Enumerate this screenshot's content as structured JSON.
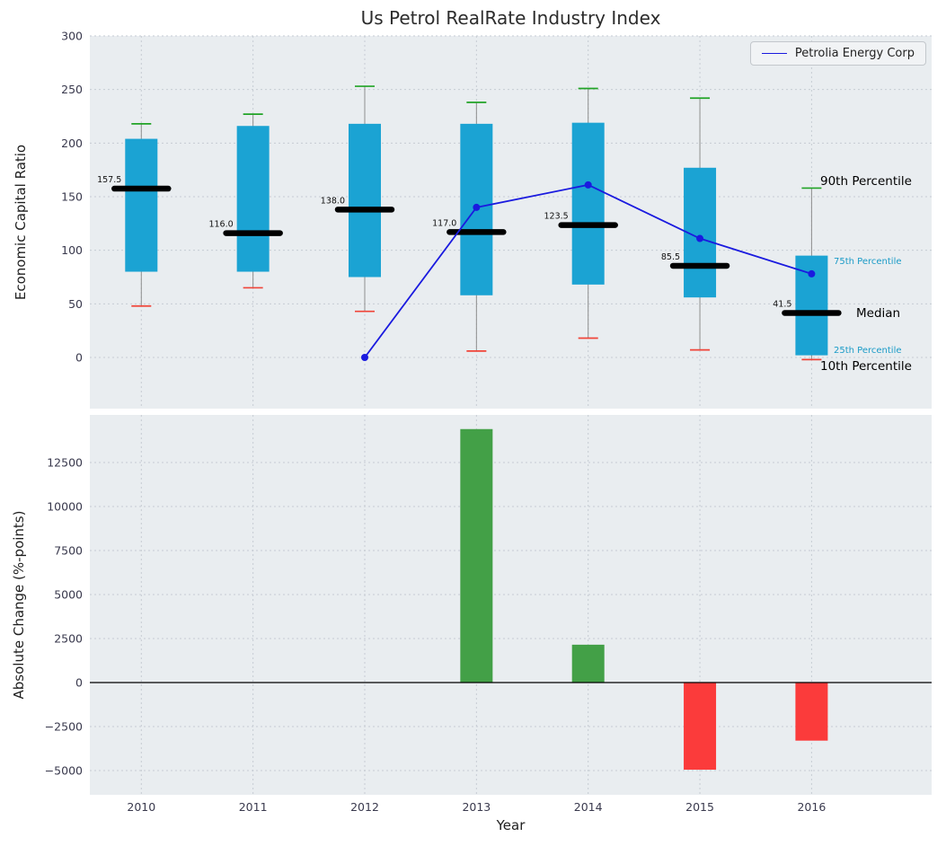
{
  "title": "Us Petrol RealRate Industry Index",
  "legend": {
    "label": "Petrolia Energy Corp"
  },
  "annotations": {
    "p90": "90th Percentile",
    "p75": "75th Percentile",
    "median": "Median",
    "p25": "25th Percentile",
    "p10": "10th Percentile"
  },
  "colors": {
    "box": "#1ba3d3",
    "median": "#000000",
    "cap_high": "#21a326",
    "cap_low": "#f04438",
    "whisker": "#8f8f8f",
    "company_line": "#1a1adf",
    "bar_positive": "#43a047",
    "bar_negative": "#fb3b3b",
    "plot_bg": "#e9edf0",
    "grid": "#c6ccd3",
    "tick_text": "#39394d",
    "annotation_small": "#1a9bc7"
  },
  "chart_data": [
    {
      "type": "boxplot",
      "title": "Us Petrol RealRate Industry Index",
      "ylabel": "Economic Capital Ratio",
      "ylim": [
        -48,
        300
      ],
      "yticks": [
        0,
        50,
        100,
        150,
        200,
        250,
        300
      ],
      "grid": "dotted",
      "legend_position": "upper right",
      "categories": [
        2010,
        2011,
        2012,
        2013,
        2014,
        2015,
        2016
      ],
      "boxes": [
        {
          "year": 2010,
          "p10": 48,
          "p25": 80,
          "median": 157.5,
          "p75": 204,
          "p90": 218,
          "label": "157.5"
        },
        {
          "year": 2011,
          "p10": 65,
          "p25": 80,
          "median": 116.0,
          "p75": 216,
          "p90": 227,
          "label": "116.0"
        },
        {
          "year": 2012,
          "p10": 43,
          "p25": 75,
          "median": 138.0,
          "p75": 218,
          "p90": 253,
          "label": "138.0"
        },
        {
          "year": 2013,
          "p10": 6,
          "p25": 58,
          "median": 117.0,
          "p75": 218,
          "p90": 238,
          "label": "117.0"
        },
        {
          "year": 2014,
          "p10": 18,
          "p25": 68,
          "median": 123.5,
          "p75": 219,
          "p90": 251,
          "label": "123.5"
        },
        {
          "year": 2015,
          "p10": 7,
          "p25": 56,
          "median": 85.5,
          "p75": 177,
          "p90": 242,
          "label": "85.5"
        },
        {
          "year": 2016,
          "p10": -2,
          "p25": 2,
          "median": 41.5,
          "p75": 95,
          "p90": 158,
          "label": "41.5"
        }
      ],
      "series": [
        {
          "name": "Petrolia Energy Corp",
          "x": [
            2012,
            2013,
            2014,
            2015,
            2016
          ],
          "y": [
            0,
            140,
            161,
            111,
            78
          ]
        }
      ]
    },
    {
      "type": "bar",
      "ylabel": "Absolute Change (%-points)",
      "xlabel": "Year",
      "ylim": [
        -6400,
        15200
      ],
      "yticks": [
        -5000,
        -2500,
        0,
        2500,
        5000,
        7500,
        10000,
        12500
      ],
      "grid": "dotted",
      "categories": [
        2013,
        2014,
        2015,
        2016
      ],
      "values": [
        14400,
        2150,
        -4950,
        -3300
      ],
      "bar_colors": [
        "positive",
        "positive",
        "negative",
        "negative"
      ]
    }
  ]
}
